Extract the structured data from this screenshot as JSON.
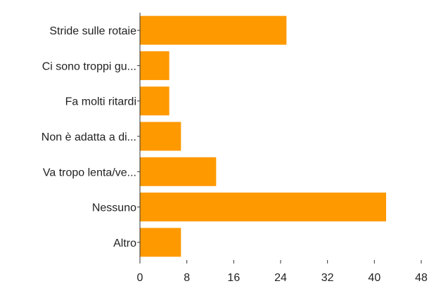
{
  "chart_data": {
    "type": "bar",
    "orientation": "horizontal",
    "categories": [
      "Stride sulle rotaie",
      "Ci sono troppi gu...",
      "Fa molti ritardi",
      "Non è adatta a di...",
      "Va tropo lenta/ve...",
      "Nessuno",
      "Altro"
    ],
    "values": [
      25,
      5,
      5,
      7,
      13,
      42,
      7
    ],
    "xlim": [
      0,
      48
    ],
    "xticks": [
      "0",
      "8",
      "16",
      "24",
      "32",
      "40",
      "48"
    ],
    "title": "",
    "xlabel": "",
    "ylabel": "",
    "grid": false,
    "bar_color": "#ff9900"
  }
}
